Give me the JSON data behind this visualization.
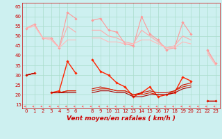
{
  "x": [
    0,
    1,
    2,
    3,
    4,
    5,
    6,
    7,
    8,
    9,
    10,
    11,
    12,
    13,
    14,
    15,
    16,
    17,
    18,
    19,
    20,
    21,
    22,
    23
  ],
  "series": [
    {
      "label": "rafales_max",
      "color": "#ff9999",
      "lw": 0.8,
      "marker": "D",
      "ms": 1.8,
      "y": [
        54,
        56,
        49,
        49,
        44,
        62,
        59,
        null,
        58,
        59,
        53,
        52,
        46,
        45,
        60,
        51,
        48,
        43,
        44,
        57,
        51,
        null,
        43,
        36
      ]
    },
    {
      "label": "rafales_moy",
      "color": "#ffaaaa",
      "lw": 0.8,
      "marker": null,
      "ms": 0,
      "y": [
        54,
        56,
        49,
        49,
        44,
        55,
        52,
        null,
        53,
        53,
        50,
        49,
        47,
        46,
        53,
        50,
        47,
        44,
        45,
        50,
        48,
        null,
        42,
        36
      ]
    },
    {
      "label": "rafales_min",
      "color": "#ffbbbb",
      "lw": 0.8,
      "marker": null,
      "ms": 0,
      "y": [
        54,
        55,
        49,
        48,
        44,
        48,
        48,
        null,
        49,
        49,
        47,
        47,
        46,
        46,
        48,
        48,
        46,
        44,
        44,
        47,
        46,
        null,
        41,
        35
      ]
    },
    {
      "label": "vent_max",
      "color": "#ff2200",
      "lw": 1.0,
      "marker": "D",
      "ms": 1.8,
      "y": [
        30,
        31,
        null,
        21,
        22,
        37,
        31,
        null,
        38,
        32,
        30,
        26,
        24,
        19,
        21,
        24,
        19,
        20,
        21,
        29,
        27,
        null,
        17,
        17
      ]
    },
    {
      "label": "vent_moy",
      "color": "#cc1100",
      "lw": 0.8,
      "marker": null,
      "ms": 0,
      "y": [
        30,
        31,
        null,
        21,
        21,
        22,
        22,
        null,
        23,
        24,
        23,
        22,
        22,
        20,
        21,
        22,
        21,
        21,
        22,
        25,
        26,
        null,
        17,
        17
      ]
    },
    {
      "label": "vent_moy2",
      "color": "#dd2200",
      "lw": 0.8,
      "marker": null,
      "ms": 0,
      "y": [
        30,
        31,
        null,
        21,
        21,
        22,
        22,
        null,
        22,
        23,
        23,
        22,
        22,
        20,
        20,
        21,
        20,
        20,
        22,
        24,
        25,
        null,
        17,
        17
      ]
    },
    {
      "label": "vent_min",
      "color": "#aa0000",
      "lw": 0.8,
      "marker": null,
      "ms": 0,
      "y": [
        30,
        31,
        null,
        21,
        21,
        21,
        21,
        null,
        21,
        22,
        22,
        21,
        21,
        19,
        19,
        20,
        20,
        20,
        21,
        23,
        24,
        null,
        17,
        17
      ]
    }
  ],
  "xlim": [
    -0.5,
    23.5
  ],
  "ylim": [
    13,
    67
  ],
  "yticks": [
    15,
    20,
    25,
    30,
    35,
    40,
    45,
    50,
    55,
    60,
    65
  ],
  "xticks": [
    0,
    1,
    2,
    3,
    4,
    5,
    6,
    8,
    9,
    10,
    11,
    12,
    13,
    14,
    15,
    16,
    17,
    18,
    19,
    20,
    21,
    22,
    23
  ],
  "xlabel": "Vent moyen/en rafales ( km/h )",
  "bg_color": "#cdf0f0",
  "grid_color": "#aaddcc",
  "arrow_color": "#ff5555",
  "tick_fontsize": 5.0,
  "label_fontsize": 6.5
}
